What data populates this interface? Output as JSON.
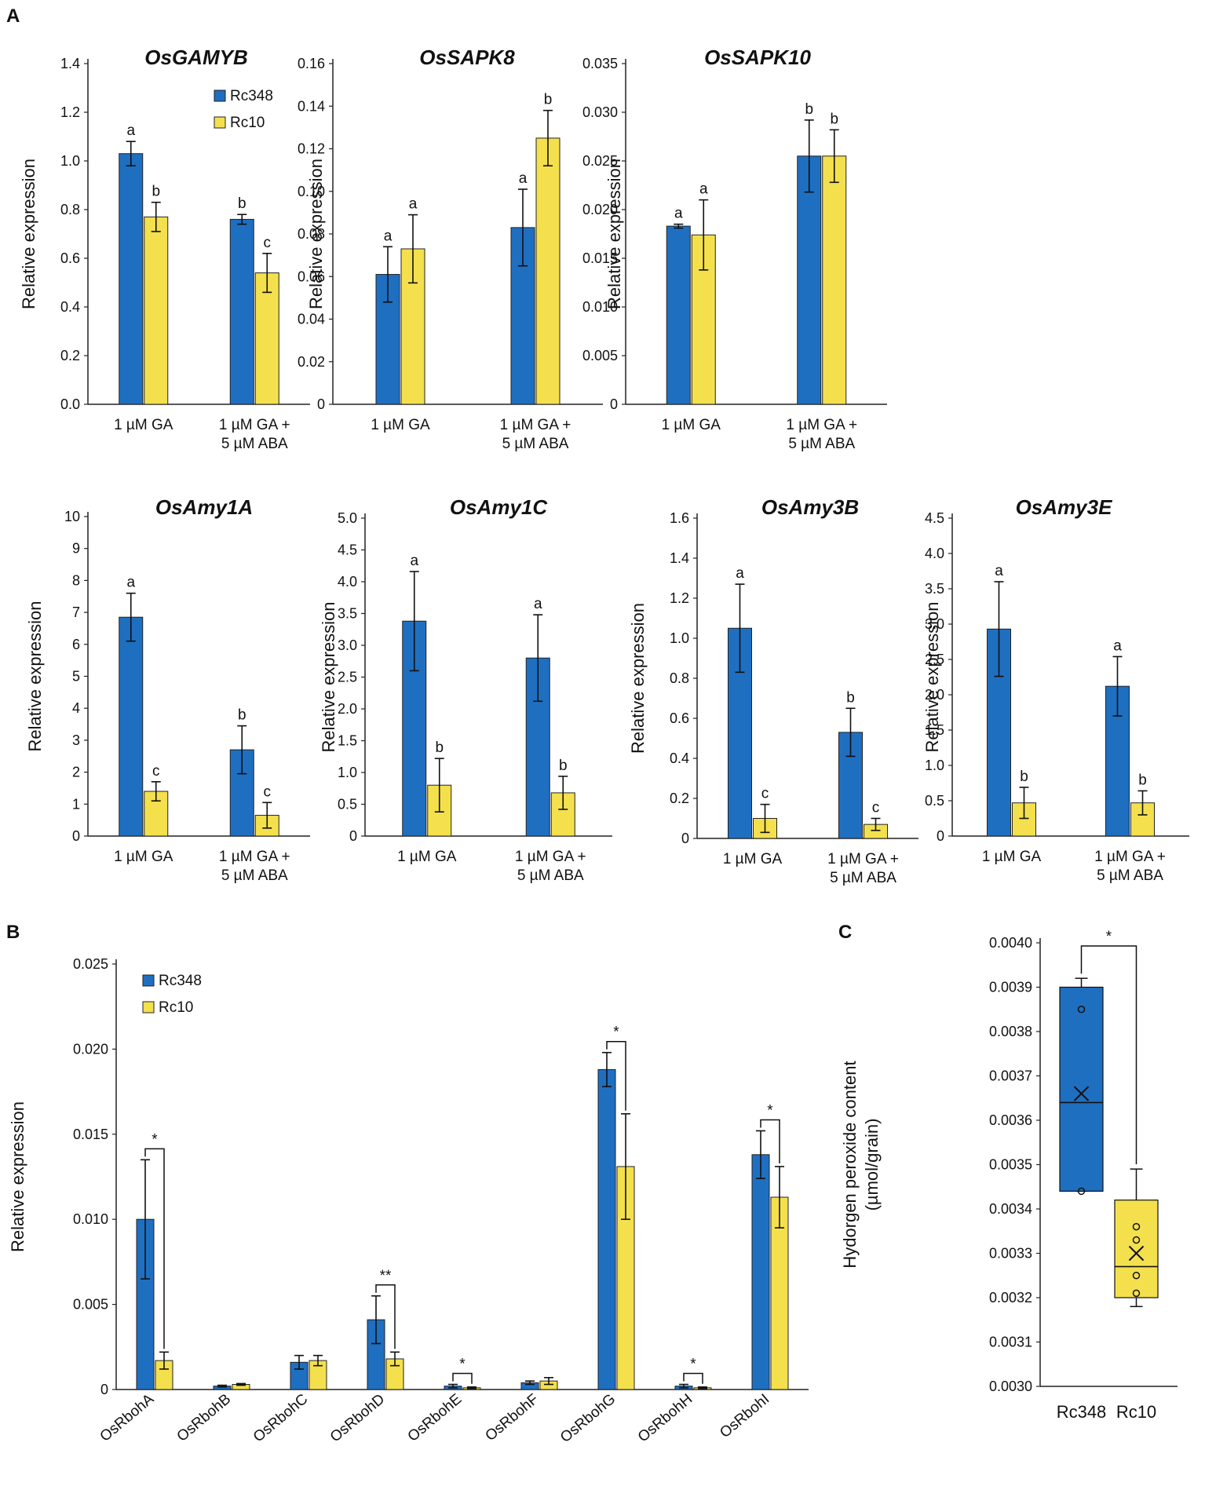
{
  "panel_labels": {
    "a": "A",
    "b": "B",
    "c": "C"
  },
  "colors": {
    "rc348": "#1f6fc1",
    "rc10": "#f4e04d",
    "stroke": "#222222"
  },
  "chart_data": [
    {
      "id": "osgamyb",
      "type": "bar",
      "title": "OsGAMYB",
      "ylabel": "Relative expression",
      "ylim": [
        0,
        1.4
      ],
      "yticks": [
        "0.0",
        "0.2",
        "0.4",
        "0.6",
        "0.8",
        "1.0",
        "1.2",
        "1.4"
      ],
      "categories": [
        [
          "1 µM GA"
        ],
        [
          "1 µM GA +",
          "5 µM ABA"
        ]
      ],
      "legend": [
        "Rc348",
        "Rc10"
      ],
      "series": [
        {
          "name": "Rc348",
          "values": [
            1.03,
            0.76
          ],
          "errors": [
            0.05,
            0.02
          ],
          "labels": [
            "a",
            "b"
          ]
        },
        {
          "name": "Rc10",
          "values": [
            0.77,
            0.54
          ],
          "errors": [
            0.06,
            0.08
          ],
          "labels": [
            "b",
            "c"
          ]
        }
      ]
    },
    {
      "id": "ossapk8",
      "type": "bar",
      "title": "OsSAPK8",
      "ylabel": "Relative expression",
      "ylim": [
        0,
        0.16
      ],
      "yticks": [
        "0",
        "0.02",
        "0.04",
        "0.06",
        "0.08",
        "0.10",
        "0.12",
        "0.14",
        "0.16"
      ],
      "categories": [
        [
          "1 µM GA"
        ],
        [
          "1 µM GA +",
          "5 µM ABA"
        ]
      ],
      "series": [
        {
          "name": "Rc348",
          "values": [
            0.061,
            0.083
          ],
          "errors": [
            0.013,
            0.018
          ],
          "labels": [
            "a",
            "a"
          ]
        },
        {
          "name": "Rc10",
          "values": [
            0.073,
            0.125
          ],
          "errors": [
            0.016,
            0.013
          ],
          "labels": [
            "a",
            "b"
          ]
        }
      ]
    },
    {
      "id": "ossapk10",
      "type": "bar",
      "title": "OsSAPK10",
      "ylabel": "Relative expression",
      "ylim": [
        0,
        0.035
      ],
      "yticks": [
        "0",
        "0.005",
        "0.010",
        "0.015",
        "0.020",
        "0.025",
        "0.030",
        "0.035"
      ],
      "categories": [
        [
          "1 µM GA"
        ],
        [
          "1 µM GA +",
          "5 µM ABA"
        ]
      ],
      "series": [
        {
          "name": "Rc348",
          "values": [
            0.0183,
            0.0255
          ],
          "errors": [
            0.0002,
            0.0037
          ],
          "labels": [
            "a",
            "b"
          ]
        },
        {
          "name": "Rc10",
          "values": [
            0.0174,
            0.0255
          ],
          "errors": [
            0.0036,
            0.0027
          ],
          "labels": [
            "a",
            "b"
          ]
        }
      ]
    },
    {
      "id": "osamy1a",
      "type": "bar",
      "title": "OsAmy1A",
      "ylabel": "Relative expression",
      "ylim": [
        0,
        10
      ],
      "yticks": [
        "0",
        "1",
        "2",
        "3",
        "4",
        "5",
        "6",
        "7",
        "8",
        "9",
        "10"
      ],
      "categories": [
        [
          "1 µM GA"
        ],
        [
          "1 µM GA +",
          "5 µM ABA"
        ]
      ],
      "series": [
        {
          "name": "Rc348",
          "values": [
            6.85,
            2.7
          ],
          "errors": [
            0.75,
            0.75
          ],
          "labels": [
            "a",
            "b"
          ]
        },
        {
          "name": "Rc10",
          "values": [
            1.4,
            0.65
          ],
          "errors": [
            0.3,
            0.4
          ],
          "labels": [
            "c",
            "c"
          ]
        }
      ]
    },
    {
      "id": "osamy1c",
      "type": "bar",
      "title": "OsAmy1C",
      "ylabel": "Relative expression",
      "ylim": [
        0,
        5.0
      ],
      "yticks": [
        "0",
        "0.5",
        "1.0",
        "1.5",
        "2.0",
        "2.5",
        "3.0",
        "3.5",
        "4.0",
        "4.5",
        "5.0"
      ],
      "categories": [
        [
          "1 µM GA"
        ],
        [
          "1 µM GA +",
          "5 µM ABA"
        ]
      ],
      "series": [
        {
          "name": "Rc348",
          "values": [
            3.38,
            2.8
          ],
          "errors": [
            0.78,
            0.68
          ],
          "labels": [
            "a",
            "a"
          ]
        },
        {
          "name": "Rc10",
          "values": [
            0.8,
            0.68
          ],
          "errors": [
            0.42,
            0.26
          ],
          "labels": [
            "b",
            "b"
          ]
        }
      ]
    },
    {
      "id": "osamy3b",
      "type": "bar",
      "title": "OsAmy3B",
      "ylabel": "Relative expression",
      "ylim": [
        0,
        1.6
      ],
      "yticks": [
        "0",
        "0.2",
        "0.4",
        "0.6",
        "0.8",
        "1.0",
        "1.2",
        "1.4",
        "1.6"
      ],
      "categories": [
        [
          "1 µM GA"
        ],
        [
          "1 µM GA +",
          "5 µM ABA"
        ]
      ],
      "series": [
        {
          "name": "Rc348",
          "values": [
            1.05,
            0.53
          ],
          "errors": [
            0.22,
            0.12
          ],
          "labels": [
            "a",
            "b"
          ]
        },
        {
          "name": "Rc10",
          "values": [
            0.1,
            0.07
          ],
          "errors": [
            0.07,
            0.03
          ],
          "labels": [
            "c",
            "c"
          ]
        }
      ]
    },
    {
      "id": "osamy3e",
      "type": "bar",
      "title": "OsAmy3E",
      "ylabel": "Relative expression",
      "ylim": [
        0,
        4.5
      ],
      "yticks": [
        "0",
        "0.5",
        "1.0",
        "1.5",
        "2.0",
        "2.5",
        "3.0",
        "3.5",
        "4.0",
        "4.5"
      ],
      "categories": [
        [
          "1 µM GA"
        ],
        [
          "1 µM GA +",
          "5 µM ABA"
        ]
      ],
      "series": [
        {
          "name": "Rc348",
          "values": [
            2.93,
            2.12
          ],
          "errors": [
            0.67,
            0.42
          ],
          "labels": [
            "a",
            "a"
          ]
        },
        {
          "name": "Rc10",
          "values": [
            0.47,
            0.47
          ],
          "errors": [
            0.22,
            0.17
          ],
          "labels": [
            "b",
            "b"
          ]
        }
      ]
    },
    {
      "id": "osrboh",
      "type": "bar",
      "title": "",
      "ylabel": "Relative expression",
      "ylim": [
        0,
        0.025
      ],
      "yticks": [
        "0",
        "0.005",
        "0.010",
        "0.015",
        "0.020",
        "0.025"
      ],
      "categories": [
        [
          "OsRbohA"
        ],
        [
          "OsRbohB"
        ],
        [
          "OsRbohC"
        ],
        [
          "OsRbohD"
        ],
        [
          "OsRbohE"
        ],
        [
          "OsRbohF"
        ],
        [
          "OsRbohG"
        ],
        [
          "OsRbohH"
        ],
        [
          "OsRbohI"
        ]
      ],
      "legend": [
        "Rc348",
        "Rc10"
      ],
      "series": [
        {
          "name": "Rc348",
          "values": [
            0.01,
            0.0002,
            0.0016,
            0.0041,
            0.0002,
            0.0004,
            0.0188,
            0.0002,
            0.0138
          ],
          "errors": [
            0.0035,
            5e-05,
            0.0004,
            0.0014,
            0.0001,
            0.0001,
            0.001,
            0.0001,
            0.0014
          ]
        },
        {
          "name": "Rc10",
          "values": [
            0.0017,
            0.0003,
            0.0017,
            0.0018,
            0.0001,
            0.0005,
            0.0131,
            0.0001,
            0.0113
          ],
          "errors": [
            0.0005,
            5e-05,
            0.0003,
            0.0004,
            5e-05,
            0.0002,
            0.0031,
            5e-05,
            0.0018
          ]
        }
      ],
      "significance": [
        {
          "category": 0,
          "label": "*"
        },
        {
          "category": 3,
          "label": "**"
        },
        {
          "category": 4,
          "label": "*"
        },
        {
          "category": 6,
          "label": "*"
        },
        {
          "category": 7,
          "label": "*"
        },
        {
          "category": 8,
          "label": "*"
        }
      ]
    },
    {
      "id": "h2o2",
      "type": "box",
      "ylabel_lines": [
        "Hydorgen peroxide content",
        "(µmol/grain)"
      ],
      "ylim": [
        0.003,
        0.004
      ],
      "yticks": [
        "0.0030",
        "0.0031",
        "0.0032",
        "0.0033",
        "0.0034",
        "0.0035",
        "0.0036",
        "0.0037",
        "0.0038",
        "0.0039",
        "0.0040"
      ],
      "categories": [
        "Rc348",
        "Rc10"
      ],
      "boxes": [
        {
          "name": "Rc348",
          "min": 0.00344,
          "q1": 0.00344,
          "median": 0.00364,
          "q3": 0.0039,
          "max": 0.00392,
          "mean": 0.00366,
          "points": [
            0.00385,
            0.00344
          ]
        },
        {
          "name": "Rc10",
          "min": 0.00318,
          "q1": 0.0032,
          "median": 0.00327,
          "q3": 0.00342,
          "max": 0.00349,
          "mean": 0.0033,
          "points": [
            0.00336,
            0.00333,
            0.00325,
            0.00321
          ]
        }
      ],
      "significance": "*"
    }
  ]
}
